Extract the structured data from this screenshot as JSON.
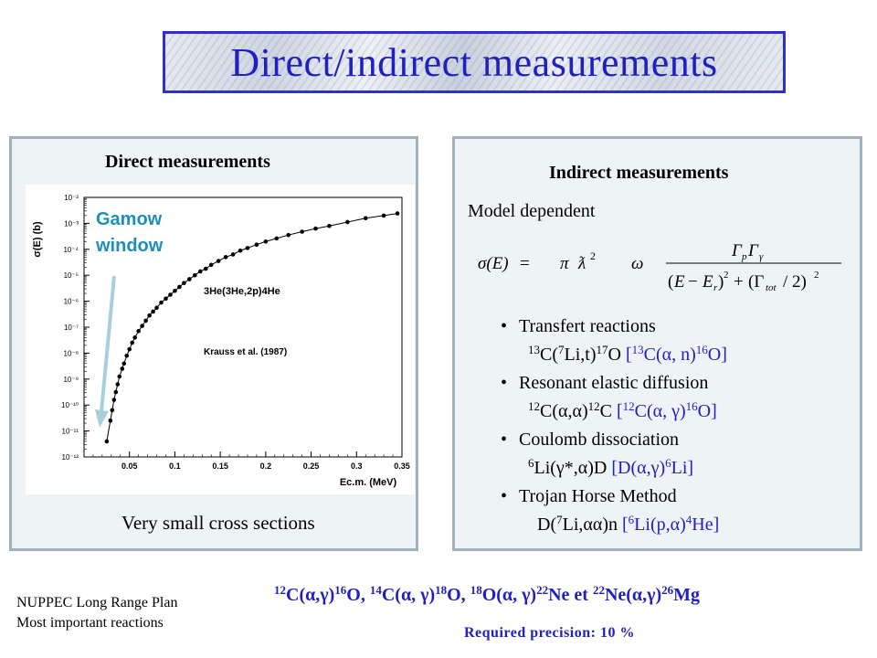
{
  "slide": {
    "title": "Direct/indirect measurements",
    "left_panel": {
      "heading": "Direct measurements",
      "gamow_line1": "Gamow",
      "gamow_line2": "window",
      "caption": "Very small cross sections"
    },
    "right_panel": {
      "heading": "Indirect measurements",
      "model_dependent": "Model dependent",
      "bullets": [
        {
          "title": "Transfert reactions"
        },
        {
          "title": "Resonant elastic diffusion"
        },
        {
          "title": "Coulomb dissociation"
        },
        {
          "title": "Trojan Horse Method"
        }
      ]
    },
    "footer": {
      "line1": "NUPPEC Long Range Plan",
      "line2": "Most important reactions",
      "precision": "Required precision: 10 %"
    }
  },
  "chart_data": {
    "type": "scatter",
    "ylabel": "σ(E) (b)",
    "xlabel": "Ec.m. (MeV)",
    "annotation1": "3He(3He,2p)4He",
    "annotation2": "Krauss et al. (1987)",
    "xlim": [
      0,
      0.35
    ],
    "ylim_log10": [
      -12,
      -2
    ],
    "x_ticks": [
      "0.05",
      "0.1",
      "0.15",
      "0.2",
      "0.25",
      "0.3",
      "0.35"
    ],
    "y_ticks": [
      "10⁻²",
      "10⁻³",
      "10⁻⁴",
      "10⁻⁵",
      "10⁻⁶",
      "10⁻⁷",
      "10⁻⁸",
      "10⁻⁹",
      "10⁻¹⁰",
      "10⁻¹¹",
      "10⁻¹²"
    ],
    "x": [
      0.025,
      0.029,
      0.031,
      0.033,
      0.035,
      0.037,
      0.039,
      0.042,
      0.044,
      0.047,
      0.05,
      0.053,
      0.056,
      0.06,
      0.064,
      0.068,
      0.072,
      0.076,
      0.08,
      0.085,
      0.09,
      0.095,
      0.1,
      0.105,
      0.11,
      0.116,
      0.122,
      0.128,
      0.134,
      0.14,
      0.148,
      0.156,
      0.164,
      0.172,
      0.18,
      0.19,
      0.2,
      0.212,
      0.225,
      0.24,
      0.255,
      0.27,
      0.29,
      0.31,
      0.33,
      0.345
    ],
    "log10_sigma": [
      -11.4,
      -10.6,
      -10.2,
      -9.8,
      -9.5,
      -9.2,
      -8.9,
      -8.6,
      -8.4,
      -8.1,
      -7.85,
      -7.6,
      -7.4,
      -7.15,
      -6.95,
      -6.75,
      -6.55,
      -6.4,
      -6.25,
      -6.05,
      -5.9,
      -5.75,
      -5.6,
      -5.45,
      -5.3,
      -5.15,
      -5.0,
      -4.85,
      -4.75,
      -4.6,
      -4.45,
      -4.3,
      -4.2,
      -4.05,
      -3.95,
      -3.82,
      -3.7,
      -3.58,
      -3.45,
      -3.32,
      -3.2,
      -3.1,
      -2.95,
      -2.8,
      -2.7,
      -2.62
    ]
  }
}
